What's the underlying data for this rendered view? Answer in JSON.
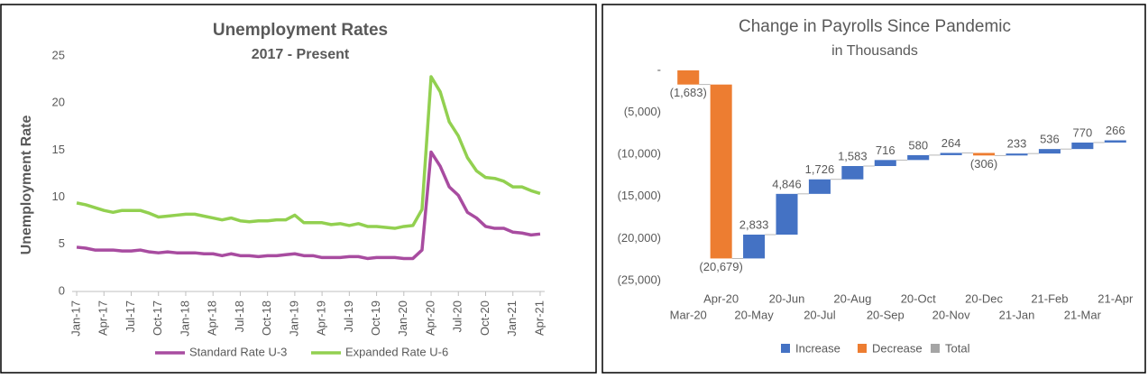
{
  "chart_data": [
    {
      "type": "line",
      "title": "Unemployment Rates",
      "subtitle": "2017 - Present",
      "y_label": "Unemployment Rate",
      "categories": [
        "Jan-17",
        null,
        null,
        "Apr-17",
        null,
        null,
        "Jul-17",
        null,
        null,
        "Oct-17",
        null,
        null,
        "Jan-18",
        null,
        null,
        "Apr-18",
        null,
        null,
        "Jul-18",
        null,
        null,
        "Oct-18",
        null,
        null,
        "Jan-19",
        null,
        null,
        "Apr-19",
        null,
        null,
        "Jul-19",
        null,
        null,
        "Oct-19",
        null,
        null,
        "Jan-20",
        null,
        null,
        "Apr-20",
        null,
        null,
        "Jul-20",
        null,
        null,
        "Oct-20",
        null,
        null,
        "Jan-21",
        null,
        null,
        "Apr-21"
      ],
      "series": [
        {
          "name": "Standard Rate U-3",
          "color": "#a84ca0",
          "values": [
            4.7,
            4.6,
            4.4,
            4.4,
            4.4,
            4.3,
            4.3,
            4.4,
            4.2,
            4.1,
            4.2,
            4.1,
            4.1,
            4.1,
            4.0,
            4.0,
            3.8,
            4.0,
            3.8,
            3.8,
            3.7,
            3.8,
            3.8,
            3.9,
            4.0,
            3.8,
            3.8,
            3.6,
            3.6,
            3.6,
            3.7,
            3.7,
            3.5,
            3.6,
            3.6,
            3.6,
            3.5,
            3.5,
            4.4,
            14.8,
            13.3,
            11.1,
            10.2,
            8.4,
            7.8,
            6.9,
            6.7,
            6.7,
            6.3,
            6.2,
            6.0,
            6.1
          ]
        },
        {
          "name": "Expanded Rate U-6",
          "color": "#92d050",
          "values": [
            9.4,
            9.2,
            8.9,
            8.6,
            8.4,
            8.6,
            8.6,
            8.6,
            8.3,
            7.9,
            8.0,
            8.1,
            8.2,
            8.2,
            8.0,
            7.8,
            7.6,
            7.8,
            7.5,
            7.4,
            7.5,
            7.5,
            7.6,
            7.6,
            8.1,
            7.3,
            7.3,
            7.3,
            7.1,
            7.2,
            7.0,
            7.2,
            6.9,
            6.9,
            6.8,
            6.7,
            6.9,
            7.0,
            8.7,
            22.8,
            21.2,
            18.0,
            16.5,
            14.2,
            12.8,
            12.1,
            12.0,
            11.7,
            11.1,
            11.1,
            10.7,
            10.4
          ]
        }
      ],
      "ylim": [
        0,
        25
      ],
      "yticks": [
        0,
        5,
        10,
        15,
        20,
        25
      ]
    },
    {
      "type": "waterfall",
      "title": "Change in Payrolls Since Pandemic",
      "subtitle": "in Thousands",
      "categories": [
        "Mar-20",
        "Apr-20",
        "20-May",
        "20-Jun",
        "20-Jul",
        "20-Aug",
        "20-Sep",
        "20-Oct",
        "20-Nov",
        "20-Dec",
        "21-Jan",
        "21-Feb",
        "21-Mar",
        "21-Apr"
      ],
      "values": [
        -1683,
        -20679,
        2833,
        4846,
        1726,
        1583,
        716,
        580,
        264,
        -306,
        233,
        536,
        770,
        266
      ],
      "value_labels": [
        "(1,683)",
        "(20,679)",
        "2,833",
        "4,846",
        "1,726",
        "1,583",
        "716",
        "580",
        "264",
        "(306)",
        "233",
        "536",
        "770",
        "266"
      ],
      "legend": [
        {
          "name": "Increase",
          "color": "#4472c4"
        },
        {
          "name": "Decrease",
          "color": "#ed7d31"
        },
        {
          "name": "Total",
          "color": "#a5a5a5"
        }
      ],
      "ylim": [
        -25000,
        0
      ],
      "yticks": [
        {
          "value": 0,
          "label": "-"
        },
        {
          "value": -5000,
          "label": "(5,000)"
        },
        {
          "value": -10000,
          "label": "(10,000)"
        },
        {
          "value": -15000,
          "label": "(15,000)"
        },
        {
          "value": -20000,
          "label": "(20,000)"
        },
        {
          "value": -25000,
          "label": "(25,000)"
        }
      ]
    }
  ]
}
